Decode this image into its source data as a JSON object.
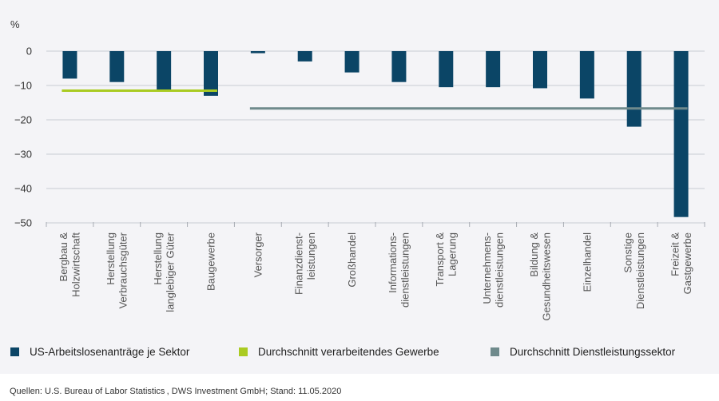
{
  "chart_data": {
    "type": "bar",
    "unit_label": "%",
    "ylim": [
      -50,
      0
    ],
    "yticks": [
      0,
      -10,
      -20,
      -30,
      -40,
      -50
    ],
    "ytick_labels": [
      "0",
      "−10",
      "−20",
      "−30",
      "−40",
      "−50"
    ],
    "grid": true,
    "categories": [
      [
        "Bergbau &",
        "Holzwirtschaft"
      ],
      [
        "Herstellung",
        "Verbrauchsgüter"
      ],
      [
        "Herstellung",
        "langlebiger Güter"
      ],
      [
        "Baugewerbe"
      ],
      [
        "Versorger"
      ],
      [
        "Finanzdienst-",
        "leistungen"
      ],
      [
        "Großhandel"
      ],
      [
        "Informations-",
        "dienstleistungen"
      ],
      [
        "Transport &",
        "Lagerung"
      ],
      [
        "Unternehmens-",
        "dienstleistungen"
      ],
      [
        "Bildung &",
        "Gesundheitswesen"
      ],
      [
        "Einzelhandel"
      ],
      [
        "Sonstige",
        "Dienstleistungen"
      ],
      [
        "Freizeit &",
        "Gastgewerbe"
      ]
    ],
    "series": [
      {
        "name": "US-Arbeitslosenanträge je Sektor",
        "color": "#0b4566",
        "values": [
          -8,
          -9,
          -11.5,
          -13,
          -0.6,
          -3,
          -6.2,
          -9,
          -10.5,
          -10.5,
          -10.8,
          -13.8,
          -22,
          -48.3
        ]
      }
    ],
    "averages": [
      {
        "name": "Durchschnitt verarbeitendes Gewerbe",
        "color": "#aacb22",
        "value": -11.5,
        "from_category": 0,
        "to_category": 3
      },
      {
        "name": "Durchschnitt Dienstleistungssektor",
        "color": "#6f8a8c",
        "value": -16.7,
        "from_category": 4,
        "to_category": 13
      }
    ],
    "legend_position": "bottom"
  },
  "source": "Quellen: U.S. Bureau of Labor Statistics , DWS Investment GmbH;  Stand: 11.05.2020"
}
